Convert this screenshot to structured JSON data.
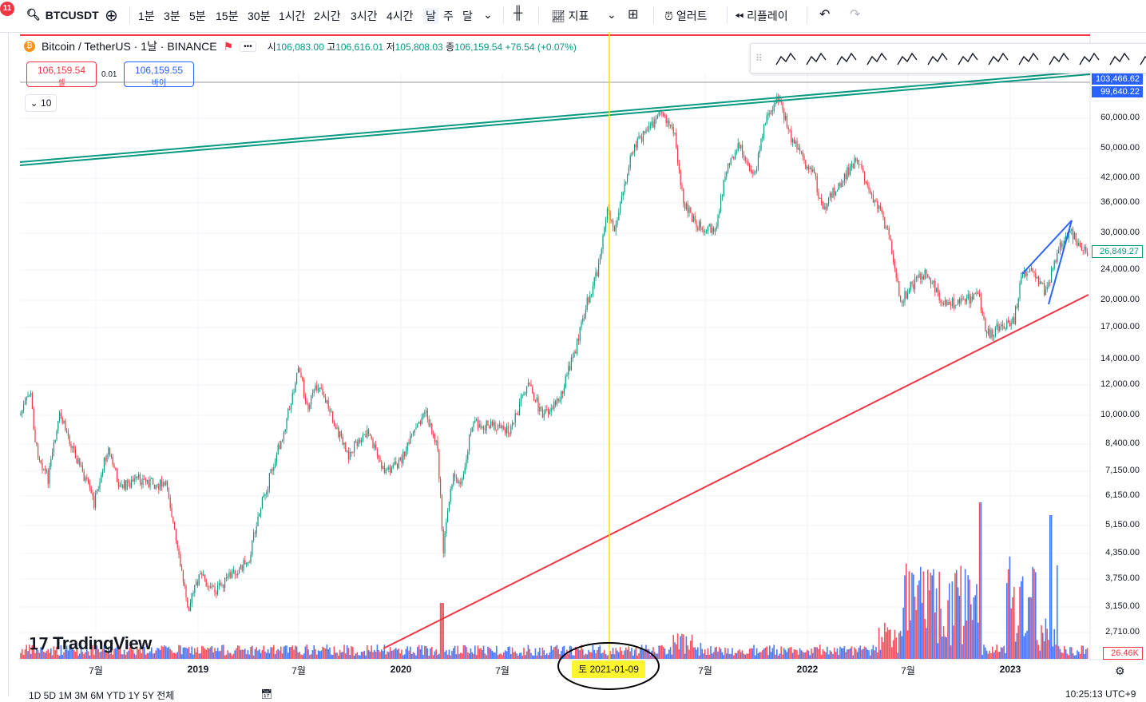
{
  "header": {
    "notification_count": "11",
    "symbol": "BTCUSDT",
    "intervals": [
      "1분",
      "3분",
      "5분",
      "15분",
      "30분",
      "1시간",
      "2시간",
      "3시간",
      "4시간",
      "날",
      "주",
      "달"
    ],
    "indicators_label": "지표",
    "alerts_label": "얼러트",
    "replay_label": "리플레이"
  },
  "legend": {
    "title": "Bitcoin / TetherUS · 1날 · BINANCE",
    "open_label": "시",
    "open": "106,083.00",
    "high_label": "고",
    "high": "106,616.01",
    "low_label": "저",
    "low": "105,808.03",
    "close_label": "종",
    "close": "106,159.54",
    "change": "+76.54 (+0.07%)",
    "more": "•••"
  },
  "order": {
    "sell_price": "106,159.54",
    "sell_label": "셀",
    "spread": "0.01",
    "buy_price": "106,159.55",
    "buy_label": "바이"
  },
  "collapse": {
    "count": "10"
  },
  "price_axis": [
    "60,000.00",
    "50,000.00",
    "42,000.00",
    "36,000.00",
    "30,000.00",
    "24,000.00",
    "20,000.00",
    "17,000.00",
    "14,000.00",
    "12,000.00",
    "10,000.00",
    "8,400.00",
    "7,150.00",
    "6,150.00",
    "5,150.00",
    "4,350.00",
    "3,750.00",
    "3,150.00",
    "2,710.00"
  ],
  "price_tags": {
    "top1": "103,466.62",
    "top2": "99,640.22",
    "current": "26,849.27",
    "volume": "26.46K"
  },
  "time_axis": [
    {
      "label": "7월",
      "bold": false
    },
    {
      "label": "2019",
      "bold": true
    },
    {
      "label": "7월",
      "bold": false
    },
    {
      "label": "2020",
      "bold": true
    },
    {
      "label": "7월",
      "bold": false
    },
    {
      "label": "7월",
      "bold": false
    },
    {
      "label": "2022",
      "bold": true
    },
    {
      "label": "7월",
      "bold": false
    },
    {
      "label": "2023",
      "bold": true
    }
  ],
  "crosshair_date": "토 2021-01-09",
  "watermark": "TradingView",
  "bottom": {
    "ranges": "1D  5D  1M  3M  6M  YTD  1Y  5Y  전체",
    "clock": "10:25:13 UTC+9"
  },
  "colors": {
    "up": "#089981",
    "down": "#f23645",
    "volume_up": "#2962ff",
    "volume_down": "#f23645",
    "channel": "#089981",
    "support": "#f23645",
    "wedge": "#2962ff",
    "crosshair": "#f5e400"
  }
}
